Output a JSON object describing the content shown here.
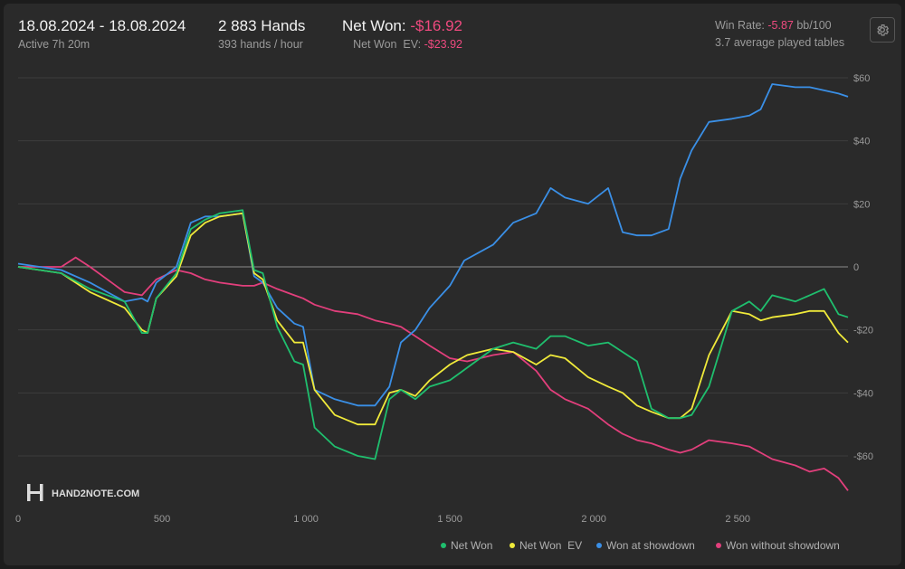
{
  "header": {
    "date_range": "18.08.2024 - 18.08.2024",
    "active": "Active 7h 20m",
    "hands": "2 883 Hands",
    "hands_rate": "393 hands / hour",
    "net_won_label": "Net Won:",
    "net_won_value": "-$16.92",
    "net_won_ev_label": "Net Won  EV:",
    "net_won_ev_value": "-$23.92",
    "win_rate_label": "Win Rate:",
    "win_rate_value": "-5.87",
    "win_rate_unit": "bb/100",
    "avg_tables": "3.7 average played tables",
    "settings_icon": "gear-icon"
  },
  "watermark": {
    "logo_text": "HAND2NOTE.COM"
  },
  "colors": {
    "net_won": "#1fbf6e",
    "net_won_ev": "#f0ea3a",
    "showdown": "#3a8fe6",
    "non_showdown": "#e23f7c",
    "negative": "#ef4a7f",
    "grid": "#3c3c3c"
  },
  "chart_data": {
    "type": "line",
    "x_ticks": [
      0,
      500,
      1000,
      1500,
      2000,
      2500
    ],
    "x_tick_labels": [
      "0",
      "500",
      "1 000",
      "1 500",
      "2 000",
      "2 500"
    ],
    "xlim": [
      0,
      2883
    ],
    "ylim": [
      -70,
      60
    ],
    "y_ticks": [
      60,
      40,
      20,
      0,
      -20,
      -40,
      -60
    ],
    "y_tick_labels": [
      "$60",
      "$40",
      "$20",
      "0",
      "-$20",
      "-$40",
      "-$60"
    ],
    "legend_position": "bottom-right",
    "series": [
      {
        "name": "Net Won",
        "color_key": "net_won",
        "x": [
          0,
          150,
          250,
          370,
          430,
          450,
          480,
          550,
          600,
          650,
          700,
          780,
          820,
          850,
          900,
          960,
          990,
          1030,
          1100,
          1180,
          1240,
          1290,
          1330,
          1380,
          1430,
          1500,
          1560,
          1650,
          1720,
          1800,
          1850,
          1900,
          1980,
          2050,
          2100,
          2150,
          2200,
          2260,
          2300,
          2340,
          2400,
          2480,
          2540,
          2580,
          2620,
          2700,
          2750,
          2800,
          2850,
          2883
        ],
        "y": [
          0,
          -2,
          -7,
          -11,
          -21,
          -21,
          -10,
          -2,
          12,
          15,
          17,
          18,
          -1,
          -2,
          -19,
          -30,
          -31,
          -51,
          -57,
          -60,
          -61,
          -42,
          -39,
          -42,
          -38,
          -36,
          -32,
          -26,
          -24,
          -26,
          -22,
          -22,
          -25,
          -24,
          -27,
          -30,
          -45,
          -48,
          -48,
          -47,
          -38,
          -14,
          -11,
          -14,
          -9,
          -11,
          -9,
          -7,
          -15,
          -16
        ]
      },
      {
        "name": "Net Won  EV",
        "color_key": "net_won_ev",
        "x": [
          0,
          150,
          250,
          370,
          430,
          450,
          480,
          550,
          600,
          650,
          700,
          780,
          820,
          850,
          900,
          960,
          990,
          1030,
          1100,
          1180,
          1240,
          1290,
          1330,
          1380,
          1430,
          1500,
          1560,
          1650,
          1720,
          1800,
          1850,
          1900,
          1980,
          2050,
          2100,
          2150,
          2200,
          2260,
          2300,
          2340,
          2400,
          2480,
          2540,
          2580,
          2620,
          2700,
          2750,
          2800,
          2850,
          2883
        ],
        "y": [
          0,
          -2,
          -8,
          -13,
          -20,
          -21,
          -10,
          -3,
          10,
          14,
          16,
          17,
          -2,
          -4,
          -17,
          -24,
          -24,
          -39,
          -47,
          -50,
          -50,
          -40,
          -39,
          -41,
          -36,
          -31,
          -28,
          -26,
          -27,
          -31,
          -28,
          -29,
          -35,
          -38,
          -40,
          -44,
          -46,
          -48,
          -48,
          -45,
          -28,
          -14,
          -15,
          -17,
          -16,
          -15,
          -14,
          -14,
          -21,
          -24
        ]
      },
      {
        "name": "Won at showdown",
        "color_key": "showdown",
        "x": [
          0,
          150,
          250,
          370,
          430,
          450,
          480,
          550,
          600,
          650,
          700,
          780,
          820,
          850,
          900,
          960,
          990,
          1030,
          1100,
          1180,
          1240,
          1290,
          1330,
          1380,
          1430,
          1500,
          1550,
          1650,
          1720,
          1800,
          1850,
          1900,
          1980,
          2050,
          2100,
          2150,
          2200,
          2260,
          2300,
          2340,
          2400,
          2480,
          2540,
          2580,
          2620,
          2700,
          2750,
          2800,
          2850,
          2883
        ],
        "y": [
          1,
          -1,
          -5,
          -11,
          -10,
          -11,
          -5,
          0,
          14,
          16,
          16,
          17,
          -3,
          -5,
          -13,
          -18,
          -19,
          -39,
          -42,
          -44,
          -44,
          -38,
          -24,
          -20,
          -13,
          -6,
          2,
          7,
          14,
          17,
          25,
          22,
          20,
          25,
          11,
          10,
          10,
          12,
          28,
          37,
          46,
          47,
          48,
          50,
          58,
          57,
          57,
          56,
          55,
          54
        ]
      },
      {
        "name": "Won without showdown",
        "color_key": "non_showdown",
        "x": [
          0,
          150,
          200,
          250,
          370,
          430,
          450,
          480,
          550,
          600,
          650,
          700,
          780,
          820,
          850,
          900,
          960,
          990,
          1030,
          1100,
          1180,
          1240,
          1290,
          1330,
          1380,
          1430,
          1500,
          1560,
          1650,
          1720,
          1800,
          1850,
          1900,
          1980,
          2050,
          2100,
          2150,
          2200,
          2260,
          2300,
          2340,
          2400,
          2480,
          2540,
          2580,
          2620,
          2700,
          2750,
          2800,
          2850,
          2883
        ],
        "y": [
          0,
          0,
          3,
          0,
          -8,
          -9,
          -7,
          -4,
          -1,
          -2,
          -4,
          -5,
          -6,
          -6,
          -5,
          -7,
          -9,
          -10,
          -12,
          -14,
          -15,
          -17,
          -18,
          -19,
          -22,
          -25,
          -29,
          -30,
          -28,
          -27,
          -33,
          -39,
          -42,
          -45,
          -50,
          -53,
          -55,
          -56,
          -58,
          -59,
          -58,
          -55,
          -56,
          -57,
          -59,
          -61,
          -63,
          -65,
          -64,
          -67,
          -71
        ]
      }
    ]
  }
}
